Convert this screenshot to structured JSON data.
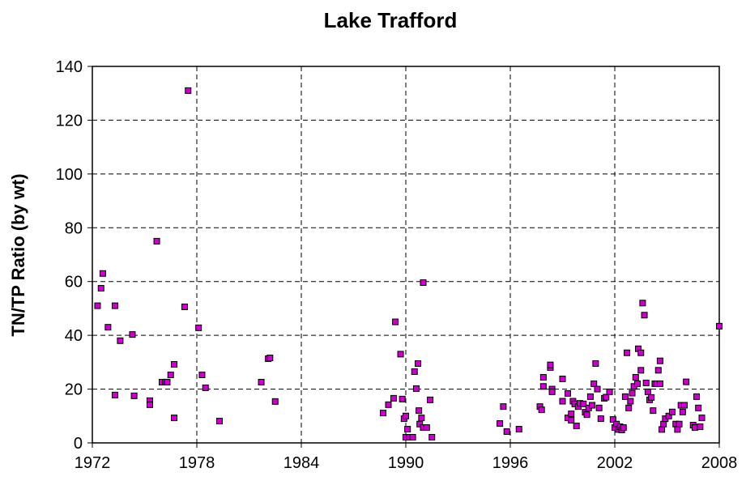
{
  "chart_data": {
    "type": "scatter",
    "title": "Lake Trafford",
    "y_label": "TN/TP Ratio (by wt)",
    "color": "#cc00cc",
    "grid": true,
    "xlim": [
      1972,
      2008
    ],
    "xticks": [
      1972,
      1978,
      1984,
      1990,
      1996,
      2002,
      2008
    ],
    "ylim": [
      0,
      140
    ],
    "yticks": [
      0,
      20,
      40,
      60,
      80,
      100,
      120,
      140
    ],
    "x": [
      1972.3,
      1972.5,
      1972.6,
      1972.9,
      1973.3,
      1973.3,
      1973.6,
      1974.3,
      1974.4,
      1975.3,
      1975.3,
      1975.7,
      1976.0,
      1976.2,
      1976.3,
      1976.5,
      1976.7,
      1976.7,
      1977.3,
      1977.5,
      1978.1,
      1978.3,
      1978.5,
      1979.3,
      1981.7,
      1982.1,
      1982.2,
      1982.5,
      1988.7,
      1989.0,
      1989.3,
      1989.4,
      1989.7,
      1989.8,
      1989.9,
      1990.0,
      1990.0,
      1990.1,
      1990.2,
      1990.4,
      1990.5,
      1990.6,
      1990.7,
      1990.75,
      1990.8,
      1990.9,
      1991.0,
      1991.0,
      1991.2,
      1991.4,
      1991.5,
      1995.4,
      1995.6,
      1995.8,
      1996.5,
      1997.7,
      1997.8,
      1997.9,
      1997.9,
      1998.3,
      1998.3,
      1998.4,
      1998.4,
      1999.0,
      1999.0,
      1999.3,
      1999.3,
      1999.5,
      1999.5,
      1999.6,
      1999.7,
      1999.8,
      1999.9,
      2000.0,
      2000.2,
      2000.3,
      2000.4,
      2000.5,
      2000.6,
      2000.7,
      2000.8,
      2000.9,
      2001.0,
      2001.1,
      2001.2,
      2001.4,
      2001.5,
      2001.7,
      2001.9,
      2002.0,
      2002.1,
      2002.2,
      2002.3,
      2002.4,
      2002.5,
      2002.6,
      2002.7,
      2002.8,
      2002.9,
      2003.0,
      2003.1,
      2003.2,
      2003.3,
      2003.35,
      2003.5,
      2003.5,
      2003.6,
      2003.7,
      2003.8,
      2003.9,
      2004.0,
      2004.1,
      2004.2,
      2004.3,
      2004.4,
      2004.5,
      2004.6,
      2004.6,
      2004.7,
      2004.8,
      2004.9,
      2005.1,
      2005.3,
      2005.5,
      2005.6,
      2005.7,
      2005.8,
      2005.9,
      2006.0,
      2006.1,
      2006.5,
      2006.6,
      2006.7,
      2006.8,
      2006.9,
      2007.0,
      2008.0
    ],
    "values": [
      51,
      57.5,
      63,
      43,
      17.8,
      51,
      38,
      40.3,
      17.5,
      15.7,
      14.2,
      75,
      22.6,
      22.6,
      22.6,
      25.3,
      29.2,
      9.3,
      50.6,
      131,
      42.8,
      25.3,
      20.5,
      8.1,
      22.6,
      31.3,
      31.6,
      15.4,
      11.1,
      14.2,
      16.6,
      45,
      33,
      16.3,
      9,
      10,
      2.1,
      5.1,
      2.1,
      2.1,
      26.5,
      20.2,
      29.5,
      12,
      7,
      9.3,
      59.6,
      5.7,
      5.7,
      16,
      2.1,
      7.2,
      13.5,
      4.2,
      5.1,
      13.5,
      12.3,
      24.4,
      21,
      28,
      29,
      20,
      19,
      23.8,
      15.5,
      18.4,
      9.3,
      8.4,
      10.8,
      15.5,
      14.5,
      6.3,
      13.5,
      14.7,
      14.5,
      11.4,
      10.5,
      13,
      17.2,
      14,
      22,
      29.5,
      20,
      13,
      9,
      16.6,
      17,
      19,
      8.7,
      5.7,
      7,
      5,
      6,
      4.8,
      5.7,
      17.2,
      33.5,
      13,
      15.5,
      18.5,
      21,
      24.4,
      22,
      35,
      33.5,
      27,
      52,
      47.5,
      22.3,
      19,
      16,
      16.9,
      12,
      22,
      22,
      27,
      30.5,
      22,
      5,
      7,
      9,
      10,
      11.5,
      7,
      5,
      7,
      14,
      11.5,
      14,
      22.7,
      6.6,
      5.7,
      17.2,
      13,
      6,
      9.3,
      43.4
    ]
  }
}
